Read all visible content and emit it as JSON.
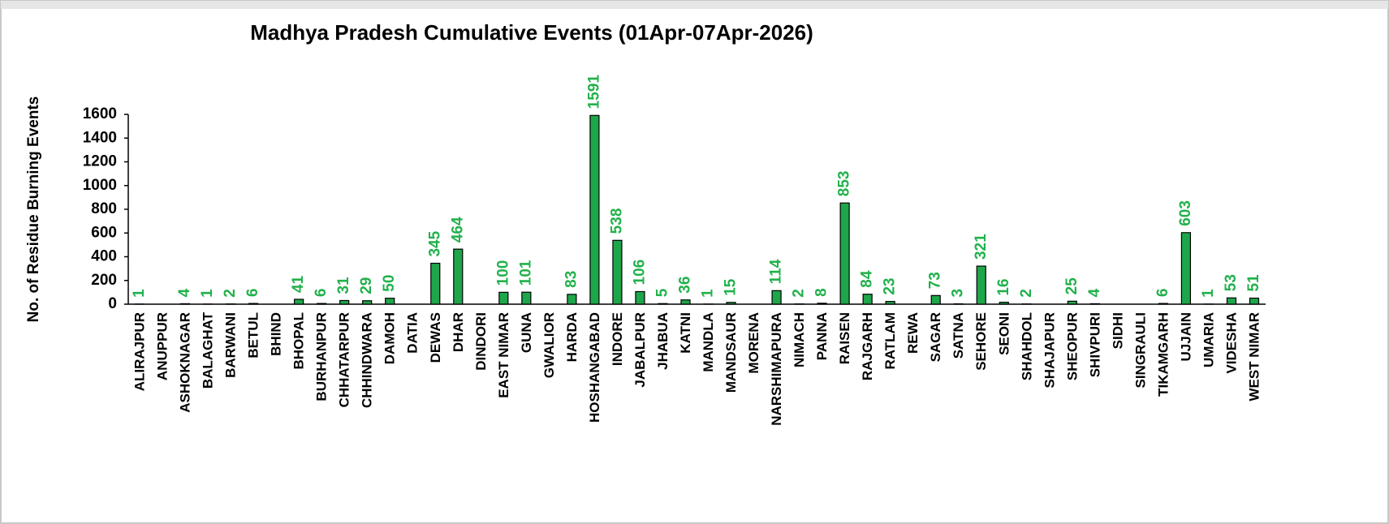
{
  "chart_data": {
    "type": "bar",
    "title": "Madhya Pradesh Cumulative Events (01Apr-07Apr-2026)",
    "y_label": "No. of Residue Burning Events",
    "categories": [
      "ALIRAJPUR",
      "ANUPPUR",
      "ASHOKNAGAR",
      "BALAGHAT",
      "BARWANI",
      "BETUL",
      "BHIND",
      "BHOPAL",
      "BURHANPUR",
      "CHHATARPUR",
      "CHHINDWARA",
      "DAMOH",
      "DATIA",
      "DEWAS",
      "DHAR",
      "DINDORI",
      "EAST NIMAR",
      "GUNA",
      "GWALIOR",
      "HARDA",
      "HOSHANGABAD",
      "INDORE",
      "JABALPUR",
      "JHABUA",
      "KATNI",
      "MANDLA",
      "MANDSAUR",
      "MORENA",
      "NARSHIMAPURA",
      "NIMACH",
      "PANNA",
      "RAISEN",
      "RAJGARH",
      "RATLAM",
      "REWA",
      "SAGAR",
      "SATNA",
      "SEHORE",
      "SEONI",
      "SHAHDOL",
      "SHAJAPUR",
      "SHEOPUR",
      "SHIVPURI",
      "SIDHI",
      "SINGRAULI",
      "TIKAMGARH",
      "UJJAIN",
      "UMARIA",
      "VIDESHA",
      "WEST NIMAR"
    ],
    "values": [
      1,
      null,
      4,
      1,
      2,
      6,
      null,
      41,
      6,
      31,
      29,
      50,
      null,
      345,
      464,
      null,
      100,
      101,
      null,
      83,
      1591,
      538,
      106,
      5,
      36,
      1,
      15,
      null,
      114,
      2,
      8,
      853,
      84,
      23,
      null,
      73,
      3,
      321,
      16,
      2,
      null,
      25,
      4,
      null,
      null,
      6,
      603,
      1,
      53,
      51
    ],
    "color": "#1ea64a",
    "label_color": "#22b14c",
    "ylim": [
      0,
      1600
    ],
    "yticks": [
      0,
      200,
      400,
      600,
      800,
      1000,
      1200,
      1400,
      1600
    ],
    "grid": false
  }
}
